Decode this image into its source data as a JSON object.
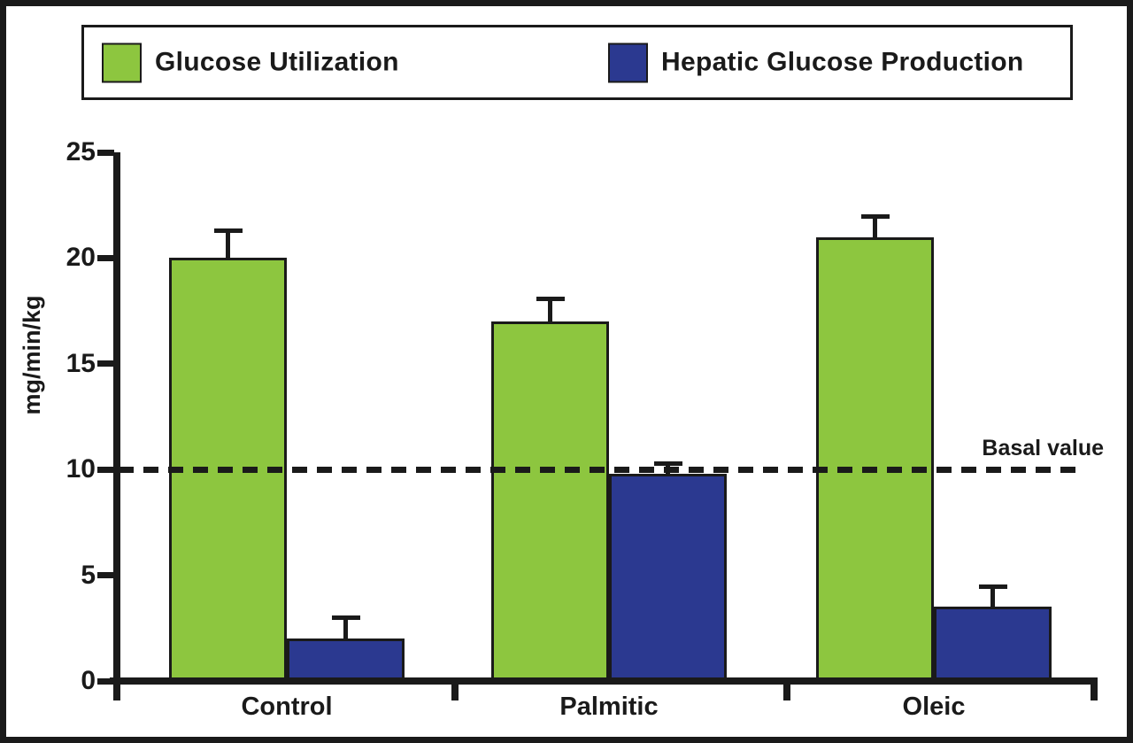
{
  "chart_data": {
    "type": "bar",
    "categories": [
      "Control",
      "Palmitic",
      "Oleic"
    ],
    "series": [
      {
        "name": "Glucose Utilization",
        "color": "#8DC63F",
        "values": [
          20,
          17,
          21
        ],
        "errors": [
          1.3,
          1.1,
          1.0
        ]
      },
      {
        "name": "Hepatic Glucose Production",
        "color": "#2B3990",
        "values": [
          2,
          9.8,
          3.5
        ],
        "errors": [
          1.0,
          0.5,
          1.0
        ]
      }
    ],
    "title": "",
    "xlabel": "",
    "ylabel": "mg/min/kg",
    "ylim": [
      0,
      25
    ],
    "yticks": [
      0,
      5,
      10,
      15,
      20,
      25
    ],
    "grid": false,
    "legend_position": "top",
    "basal_line": {
      "value": 10,
      "label": "Basal value",
      "style": "dashed"
    }
  }
}
